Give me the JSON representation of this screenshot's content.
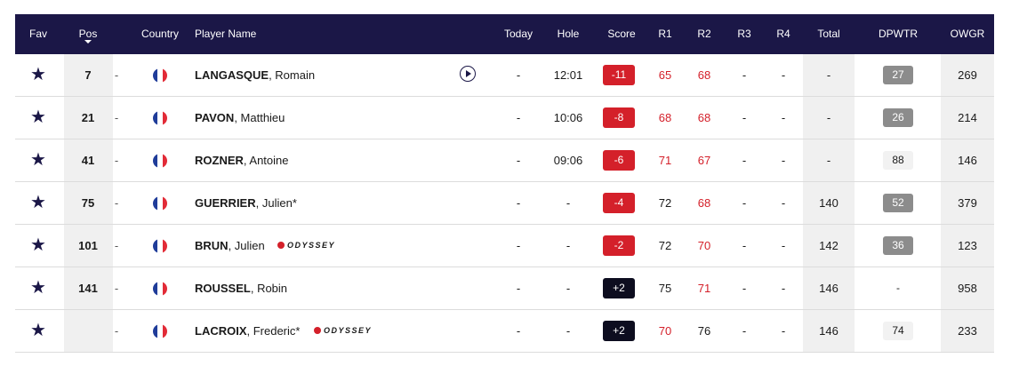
{
  "header": {
    "fav": "Fav",
    "pos": "Pos",
    "country": "Country",
    "player_name": "Player Name",
    "today": "Today",
    "hole": "Hole",
    "score": "Score",
    "r1": "R1",
    "r2": "R2",
    "r3": "R3",
    "r4": "R4",
    "total": "Total",
    "dpwtr": "DPWTR",
    "owgr": "OWGR"
  },
  "colors": {
    "header_bg": "#1b1747",
    "score_under_par": "#d4202a",
    "score_over_par": "#0d0d1f",
    "under_par_text": "#d4202a",
    "badge_grey": "#8c8c8c",
    "highlight_column": "#f0f0f0"
  },
  "icons": {
    "favourite": "star-icon",
    "play": "play-circle-icon",
    "country": "france-flag-icon",
    "sort": "sort-down-arrow-icon",
    "sponsor": "odyssey-logo"
  },
  "sponsor_text": "ODYSSEY",
  "players": [
    {
      "fav": "★",
      "pos": "7",
      "move": "-",
      "last": "LANGASQUE",
      "first": ", Romain",
      "play": true,
      "sponsor": false,
      "today": "-",
      "hole": "12:01",
      "score": "-11",
      "score_type": "under",
      "r1": "65",
      "r1_red": true,
      "r2": "68",
      "r2_red": true,
      "r3": "-",
      "r4": "-",
      "total": "-",
      "dpwtr": "27",
      "dpwtr_style": "grey",
      "owgr": "269"
    },
    {
      "fav": "★",
      "pos": "21",
      "move": "-",
      "last": "PAVON",
      "first": ", Matthieu",
      "play": false,
      "sponsor": false,
      "today": "-",
      "hole": "10:06",
      "score": "-8",
      "score_type": "under",
      "r1": "68",
      "r1_red": true,
      "r2": "68",
      "r2_red": true,
      "r3": "-",
      "r4": "-",
      "total": "-",
      "dpwtr": "26",
      "dpwtr_style": "grey",
      "owgr": "214"
    },
    {
      "fav": "★",
      "pos": "41",
      "move": "-",
      "last": "ROZNER",
      "first": ", Antoine",
      "play": false,
      "sponsor": false,
      "today": "-",
      "hole": "09:06",
      "score": "-6",
      "score_type": "under",
      "r1": "71",
      "r1_red": true,
      "r2": "67",
      "r2_red": true,
      "r3": "-",
      "r4": "-",
      "total": "-",
      "dpwtr": "88",
      "dpwtr_style": "light",
      "owgr": "146"
    },
    {
      "fav": "★",
      "pos": "75",
      "move": "-",
      "last": "GUERRIER",
      "first": ", Julien*",
      "play": false,
      "sponsor": false,
      "today": "-",
      "hole": "-",
      "score": "-4",
      "score_type": "under",
      "r1": "72",
      "r1_red": false,
      "r2": "68",
      "r2_red": true,
      "r3": "-",
      "r4": "-",
      "total": "140",
      "dpwtr": "52",
      "dpwtr_style": "grey",
      "owgr": "379"
    },
    {
      "fav": "★",
      "pos": "101",
      "move": "-",
      "last": "BRUN",
      "first": ", Julien",
      "play": false,
      "sponsor": true,
      "today": "-",
      "hole": "-",
      "score": "-2",
      "score_type": "under",
      "r1": "72",
      "r1_red": false,
      "r2": "70",
      "r2_red": true,
      "r3": "-",
      "r4": "-",
      "total": "142",
      "dpwtr": "36",
      "dpwtr_style": "grey",
      "owgr": "123"
    },
    {
      "fav": "★",
      "pos": "141",
      "move": "-",
      "last": "ROUSSEL",
      "first": ", Robin",
      "play": false,
      "sponsor": false,
      "today": "-",
      "hole": "-",
      "score": "+2",
      "score_type": "over",
      "r1": "75",
      "r1_red": false,
      "r2": "71",
      "r2_red": true,
      "r3": "-",
      "r4": "-",
      "total": "146",
      "dpwtr": "-",
      "dpwtr_style": "none",
      "owgr": "958"
    },
    {
      "fav": "★",
      "pos": "",
      "move": "-",
      "last": "LACROIX",
      "first": ", Frederic*",
      "play": false,
      "sponsor": true,
      "today": "-",
      "hole": "-",
      "score": "+2",
      "score_type": "over",
      "r1": "70",
      "r1_red": true,
      "r2": "76",
      "r2_red": false,
      "r3": "-",
      "r4": "-",
      "total": "146",
      "dpwtr": "74",
      "dpwtr_style": "light",
      "owgr": "233"
    }
  ]
}
